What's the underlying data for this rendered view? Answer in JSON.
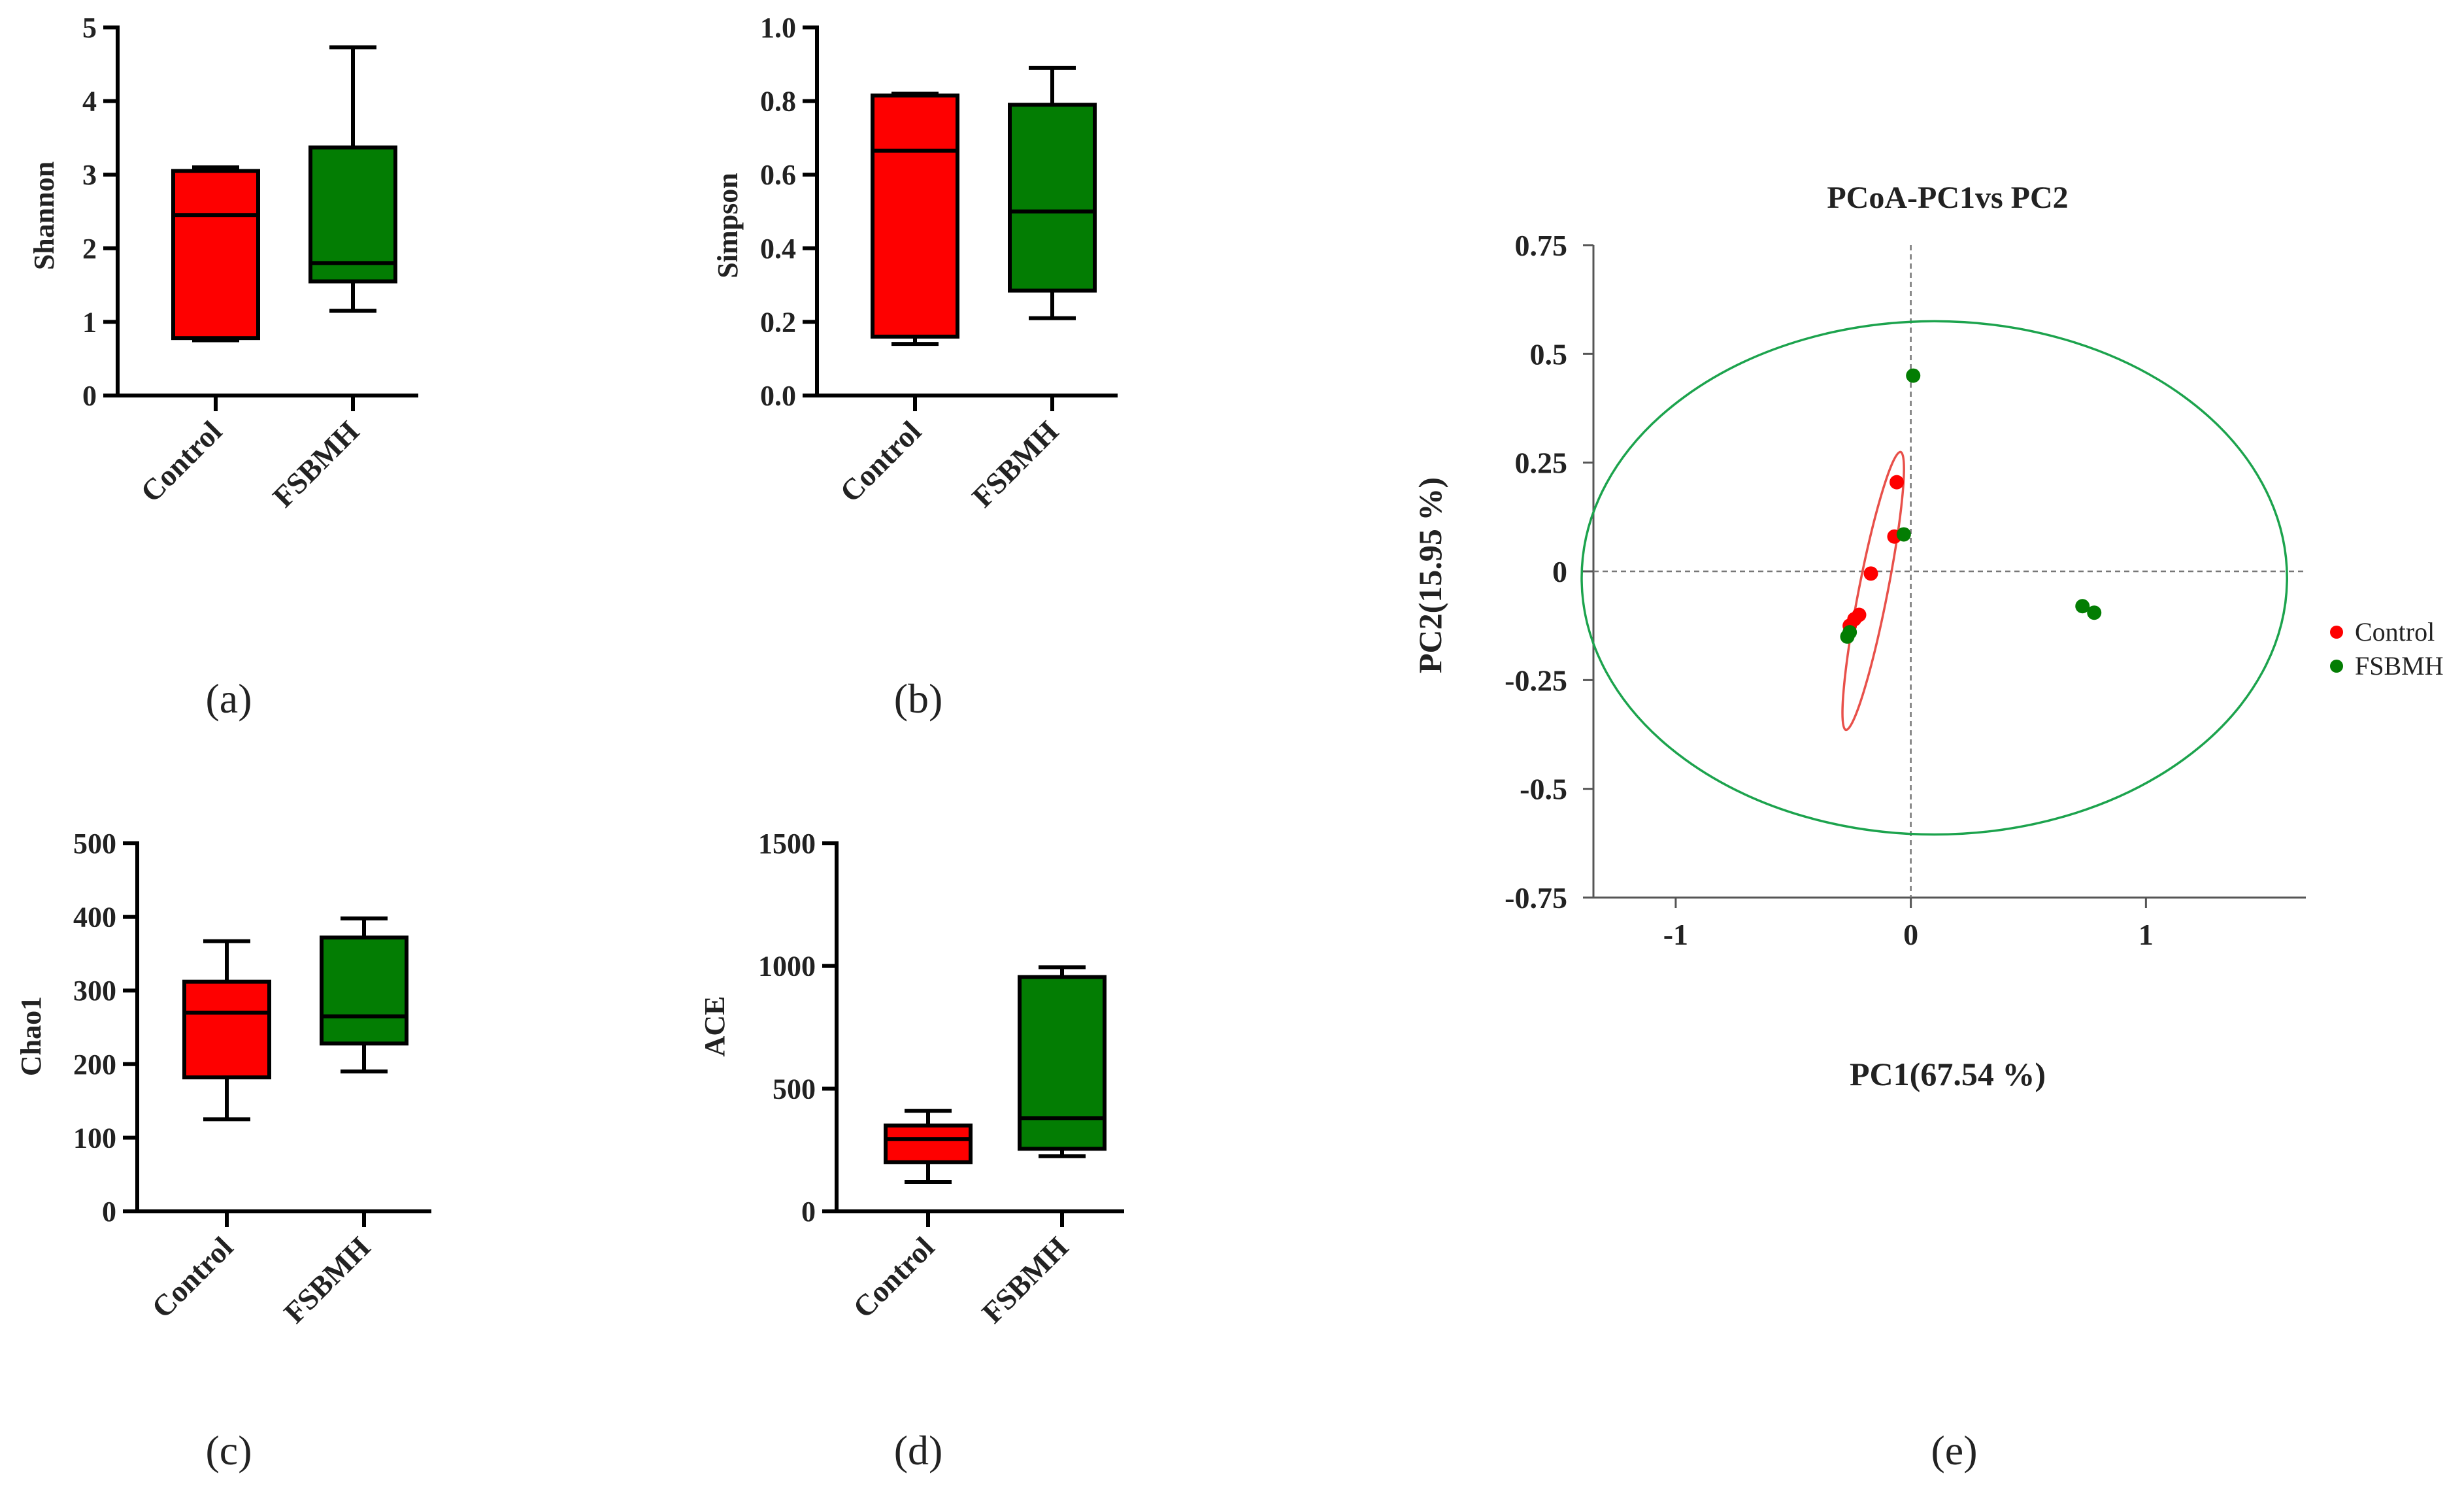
{
  "colors": {
    "control": "#fe0000",
    "fsbmh": "#037d03",
    "ellipse_control": "#e8504a",
    "ellipse_fsbmh": "#1ca34d"
  },
  "chart_data": [
    {
      "type": "boxplot",
      "panel_label": "(a)",
      "ylabel": "Shannon",
      "yticks": [
        "0",
        "1",
        "2",
        "3",
        "4",
        "5"
      ],
      "ylim": [
        0,
        5
      ],
      "categories": [
        "Control",
        "FSBMH"
      ],
      "boxes": [
        {
          "min": 0.75,
          "q1": 0.78,
          "median": 2.45,
          "q3": 3.05,
          "max": 3.1
        },
        {
          "min": 1.15,
          "q1": 1.55,
          "median": 1.8,
          "q3": 3.37,
          "max": 4.73
        }
      ]
    },
    {
      "type": "boxplot",
      "panel_label": "(b)",
      "ylabel": "Simpson",
      "yticks": [
        "0.0",
        "0.2",
        "0.4",
        "0.6",
        "0.8",
        "1.0"
      ],
      "ylim": [
        0,
        1
      ],
      "categories": [
        "Control",
        "FSBMH"
      ],
      "boxes": [
        {
          "min": 0.14,
          "q1": 0.16,
          "median": 0.665,
          "q3": 0.815,
          "max": 0.82
        },
        {
          "min": 0.21,
          "q1": 0.285,
          "median": 0.5,
          "q3": 0.79,
          "max": 0.89
        }
      ]
    },
    {
      "type": "boxplot",
      "panel_label": "(c)",
      "ylabel": "Chao1",
      "yticks": [
        "0",
        "100",
        "200",
        "300",
        "400",
        "500"
      ],
      "ylim": [
        0,
        500
      ],
      "categories": [
        "Control",
        "FSBMH"
      ],
      "boxes": [
        {
          "min": 125,
          "q1": 182,
          "median": 270,
          "q3": 312,
          "max": 367
        },
        {
          "min": 190,
          "q1": 228,
          "median": 265,
          "q3": 372,
          "max": 398
        }
      ]
    },
    {
      "type": "boxplot",
      "panel_label": "(d)",
      "ylabel": "ACE",
      "yticks": [
        "0",
        "500",
        "1000",
        "1500"
      ],
      "ylim": [
        0,
        1500
      ],
      "categories": [
        "Control",
        "FSBMH"
      ],
      "boxes": [
        {
          "min": 120,
          "q1": 200,
          "median": 295,
          "q3": 350,
          "max": 410
        },
        {
          "min": 225,
          "q1": 255,
          "median": 380,
          "q3": 955,
          "max": 995
        }
      ]
    },
    {
      "type": "scatter",
      "panel_label": "(e)",
      "title": "PCoA-PC1vs PC2",
      "xlabel": "PC1(67.54 %)",
      "ylabel": "PC2(15.95 %)",
      "xlim": [
        -1.35,
        1.68
      ],
      "ylim": [
        -0.75,
        0.75
      ],
      "xticks": [
        "-1",
        "0",
        "1"
      ],
      "yticks": [
        "0.75",
        "0.5",
        "0.25",
        "0",
        "-0.25",
        "-0.5",
        "-0.75"
      ],
      "legend": [
        "Control",
        "FSBMH"
      ],
      "series": [
        {
          "name": "Control",
          "points": [
            [
              -0.06,
              0.205
            ],
            [
              -0.07,
              0.08
            ],
            [
              -0.17,
              -0.005
            ],
            [
              -0.22,
              -0.1
            ],
            [
              -0.24,
              -0.11
            ],
            [
              -0.26,
              -0.125
            ]
          ],
          "ellipse": {
            "cx": -0.16,
            "cy": -0.045,
            "rx": 0.34,
            "ry": 0.018,
            "angle_deg": 70
          }
        },
        {
          "name": "FSBMH",
          "points": [
            [
              0.01,
              0.45
            ],
            [
              -0.03,
              0.085
            ],
            [
              0.73,
              -0.08
            ],
            [
              0.78,
              -0.095
            ],
            [
              -0.26,
              -0.14
            ],
            [
              -0.27,
              -0.15
            ]
          ],
          "ellipse": {
            "cx": 0.1,
            "cy": -0.015,
            "rx": 1.5,
            "ry": 0.59,
            "angle_deg": 0
          }
        }
      ]
    }
  ]
}
